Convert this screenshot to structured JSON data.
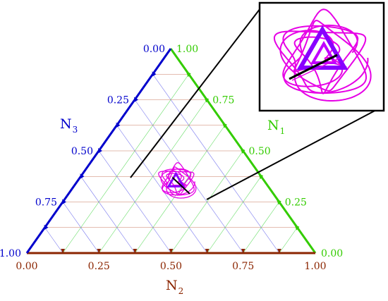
{
  "chart_data": {
    "type": "ternary",
    "title": "",
    "axes": {
      "N1": {
        "label": "N",
        "subscript": "1",
        "range": [
          0,
          1
        ],
        "ticks": [
          "0.00",
          "0.25",
          "0.50",
          "0.75",
          "1.00"
        ],
        "color": "#33cc00"
      },
      "N2": {
        "label": "N",
        "subscript": "2",
        "range": [
          0,
          1
        ],
        "ticks": [
          "0.00",
          "0.25",
          "0.50",
          "0.75",
          "1.00"
        ],
        "color": "#8b2500"
      },
      "N3": {
        "label": "N",
        "subscript": "3",
        "range": [
          0,
          1
        ],
        "ticks": [
          "0.00",
          "0.25",
          "0.50",
          "0.75",
          "1.00"
        ],
        "color": "#0000cc"
      }
    },
    "grid": true,
    "grid_step": 0.125,
    "series": [
      {
        "type": "trajectory",
        "color": "#e600e6",
        "center": [
          0.34,
          0.34,
          0.32
        ]
      },
      {
        "type": "trajectory",
        "color": "#8800ff",
        "center": [
          0.34,
          0.34,
          0.32
        ]
      },
      {
        "type": "segment",
        "color": "#000000",
        "from": [
          0.29,
          0.42,
          0.29
        ],
        "to": [
          0.37,
          0.32,
          0.31
        ]
      }
    ],
    "inset": {
      "type": "zoom",
      "shows": "magnified view of the trajectory region",
      "colors": [
        "#e600e6",
        "#8800ff",
        "#000000"
      ]
    }
  }
}
